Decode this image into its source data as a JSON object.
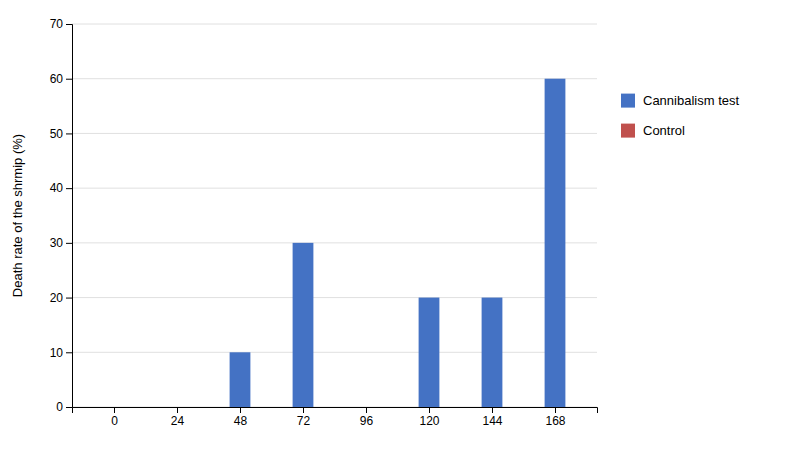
{
  "chart_data": {
    "type": "bar",
    "x": [
      0,
      24,
      48,
      72,
      96,
      120,
      144,
      168
    ],
    "series": [
      {
        "name": "Cannibalism test",
        "color": "#4472C4",
        "values": [
          0,
          0,
          10,
          30,
          0,
          20,
          20,
          60
        ]
      },
      {
        "name": "Control",
        "color": "#C0504D",
        "values": [
          0,
          0,
          0,
          0,
          0,
          0,
          0,
          0
        ]
      }
    ],
    "ylabel": "Death rate of the shrmip (%)",
    "xlim": [
      -16,
      184
    ],
    "xticks": [
      0,
      24,
      48,
      72,
      96,
      120,
      144,
      168
    ],
    "ylim": [
      0,
      70
    ],
    "yticks": [
      0,
      10,
      20,
      30,
      40,
      50,
      60,
      70
    ],
    "grid": true,
    "legend": "right"
  }
}
